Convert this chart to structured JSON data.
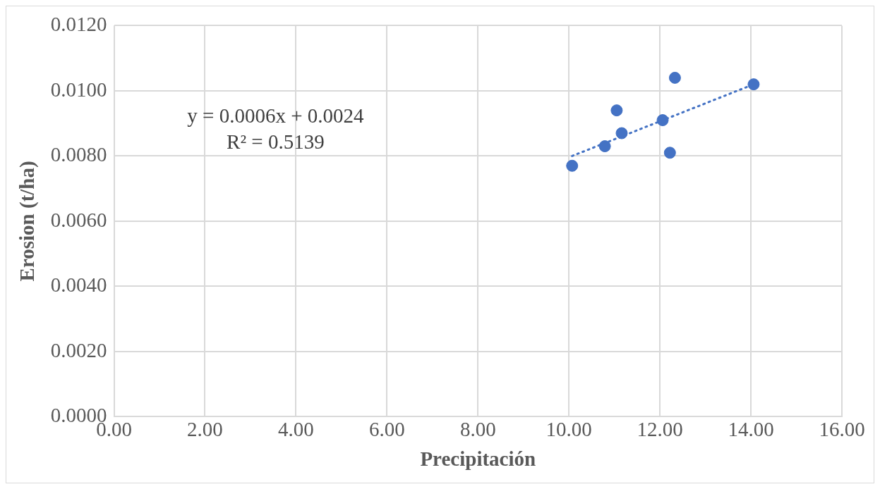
{
  "chart_data": {
    "type": "scatter",
    "xlabel": "Precipitación",
    "ylabel": "Erosion (t/ha)",
    "series": [
      {
        "type": "scatter",
        "color": "#4472c4",
        "x": [
          10.07,
          10.79,
          11.05,
          11.16,
          12.06,
          12.22,
          12.33,
          14.06
        ],
        "values": [
          0.0077,
          0.0083,
          0.0094,
          0.0087,
          0.0091,
          0.0081,
          0.0104,
          0.0102
        ]
      },
      {
        "type": "line",
        "color": "#4472c4",
        "line_style": "dotted",
        "marker": "none",
        "x": [
          10.07,
          14.06
        ],
        "values": [
          0.008,
          0.0102
        ]
      }
    ],
    "annotations": [
      "y = 0.0006x + 0.0024",
      "R² = 0.5139"
    ],
    "marker": "circle",
    "grid": true,
    "legend": false,
    "xlim": [
      0,
      16
    ],
    "xticks": [
      {
        "value": 0,
        "label": "0.00"
      },
      {
        "value": 2,
        "label": "2.00"
      },
      {
        "value": 4,
        "label": "4.00"
      },
      {
        "value": 6,
        "label": "6.00"
      },
      {
        "value": 8,
        "label": "8.00"
      },
      {
        "value": 10,
        "label": "10.00"
      },
      {
        "value": 12,
        "label": "12.00"
      },
      {
        "value": 14,
        "label": "14.00"
      },
      {
        "value": 16,
        "label": "16.00"
      }
    ],
    "ylim": [
      0,
      0.012
    ],
    "yticks": [
      {
        "value": 0,
        "label": "0.0000"
      },
      {
        "value": 0.002,
        "label": "0.0020"
      },
      {
        "value": 0.004,
        "label": "0.0040"
      },
      {
        "value": 0.006,
        "label": "0.0060"
      },
      {
        "value": 0.008,
        "label": "0.0080"
      },
      {
        "value": 0.01,
        "label": "0.0100"
      },
      {
        "value": 0.012,
        "label": "0.0120"
      }
    ]
  }
}
